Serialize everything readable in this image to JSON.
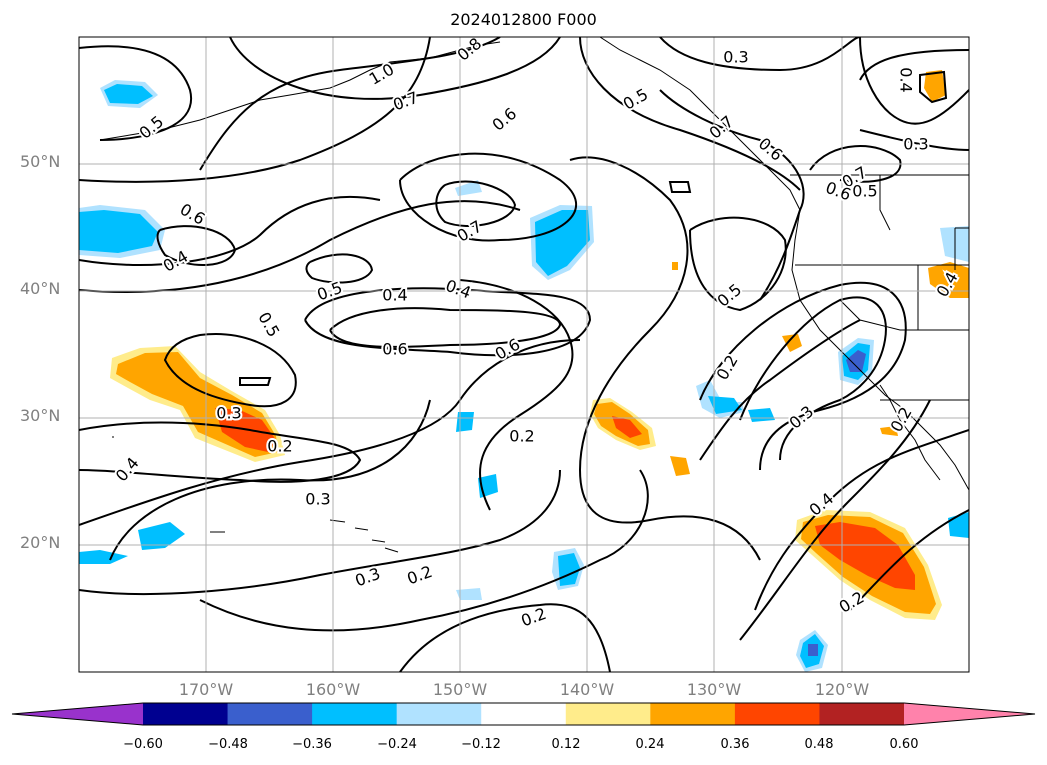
{
  "title": "2024012800 F000",
  "lat_labels": [
    "50°N",
    "40°N",
    "30°N",
    "20°N"
  ],
  "lon_labels": [
    "170°W",
    "160°W",
    "150°W",
    "140°W",
    "130°W",
    "120°W"
  ],
  "colorbar": {
    "ticks": [
      "−0.60",
      "−0.48",
      "−0.36",
      "−0.24",
      "−0.12",
      "0.12",
      "0.24",
      "0.36",
      "0.48",
      "0.60"
    ],
    "colors": [
      "#9932cc",
      "#000090",
      "#3a5fcd",
      "#00bfff",
      "#b0e2ff",
      "#ffffff",
      "#ffec8b",
      "#ffa500",
      "#ff4500",
      "#b22222",
      "#ff82ab"
    ]
  },
  "contour_labels": [
    "0.8",
    "1.0",
    "0.7",
    "0.5",
    "0.6",
    "0.3",
    "0.5",
    "0.7",
    "0.6",
    "0.4",
    "0.7",
    "0.6",
    "0.5",
    "0.6",
    "0.7",
    "0.4",
    "0.5",
    "0.4",
    "0.4",
    "0.6",
    "0.6",
    "0.5",
    "0.2",
    "0.3",
    "0.3",
    "0.2",
    "0.4",
    "0.3",
    "0.2",
    "0.2",
    "0.3",
    "0.2",
    "0.2",
    "0.4",
    "0.2",
    "0.5",
    "0.3",
    "0.4"
  ]
}
